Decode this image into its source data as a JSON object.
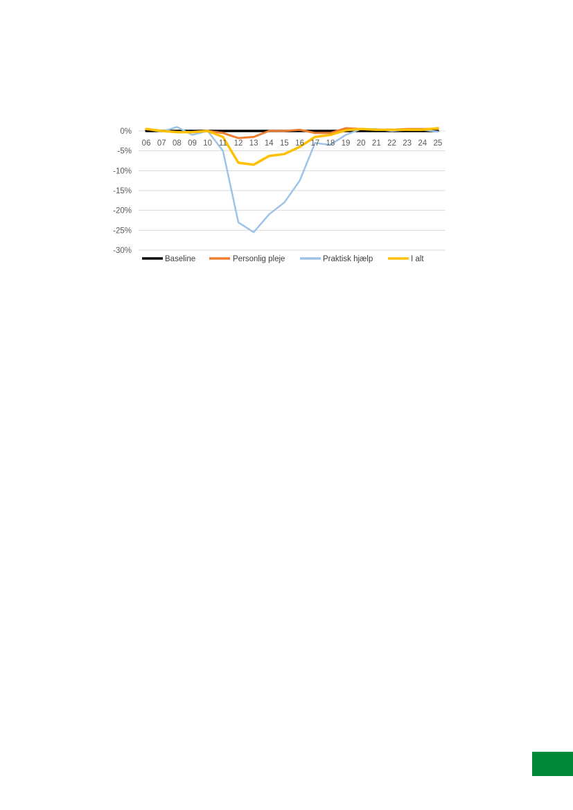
{
  "chart_data": {
    "type": "line",
    "title": "",
    "xlabel": "",
    "ylabel": "",
    "categories": [
      "06",
      "07",
      "08",
      "09",
      "10",
      "11",
      "12",
      "13",
      "14",
      "15",
      "16",
      "17",
      "18",
      "19",
      "20",
      "21",
      "22",
      "23",
      "24",
      "25"
    ],
    "ylim": [
      -30,
      0
    ],
    "yticks": [
      0,
      -5,
      -10,
      -15,
      -20,
      -25,
      -30
    ],
    "ytick_labels": [
      "0%",
      "-5%",
      "-10%",
      "-15%",
      "-20%",
      "-25%",
      "-30%"
    ],
    "grid": true,
    "legend_position": "bottom",
    "series": [
      {
        "name": "Baseline",
        "color": "#000000",
        "values": [
          0,
          0,
          0,
          0,
          0,
          0,
          0,
          0,
          0,
          0,
          0,
          0,
          0,
          0,
          0,
          0,
          0,
          0,
          0,
          0
        ]
      },
      {
        "name": "Personlig pleje",
        "color": "#ED7D31",
        "values": [
          0.5,
          0,
          -0.3,
          -0.3,
          0,
          -0.5,
          -1.8,
          -1.5,
          0,
          0,
          0.3,
          -0.5,
          -0.5,
          0.7,
          0.5,
          0.3,
          0.3,
          0.5,
          0.5,
          0.5
        ]
      },
      {
        "name": "Praktisk hjælp",
        "color": "#9DC3E6",
        "values": [
          0.5,
          -0.2,
          1,
          -1,
          0,
          -5,
          -23,
          -25.5,
          -21,
          -18,
          -12.5,
          -3,
          -3.5,
          -1,
          0.5,
          0.5,
          0,
          0.3,
          0.3,
          -0.2
        ]
      },
      {
        "name": "I alt",
        "color": "#FFC000",
        "values": [
          0.5,
          0,
          -0.3,
          -0.3,
          0,
          -1.5,
          -8,
          -8.5,
          -6.3,
          -5.8,
          -4,
          -1.5,
          -1,
          0.2,
          0.5,
          0.3,
          0.3,
          0.3,
          0.3,
          0.7
        ]
      }
    ]
  },
  "page_mark": {
    "color": "#00883A"
  }
}
